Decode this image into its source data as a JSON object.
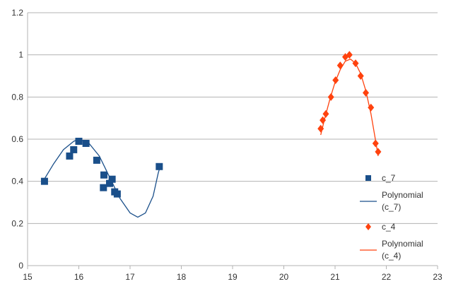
{
  "chart_data": {
    "type": "scatter",
    "title": "",
    "xlabel": "",
    "ylabel": "",
    "xlim": [
      15,
      23
    ],
    "ylim": [
      0,
      1.2
    ],
    "x_ticks": [
      "15",
      "16",
      "17",
      "18",
      "19",
      "20",
      "21",
      "22",
      "23"
    ],
    "y_ticks": [
      "0",
      "0.2",
      "0.4",
      "0.6",
      "0.8",
      "1",
      "1.2"
    ],
    "grid": "horizontal",
    "legend_position": "right",
    "series": [
      {
        "name": "c_7",
        "marker": "square",
        "color": "#1a4f8a",
        "points": [
          [
            15.33,
            0.4
          ],
          [
            15.82,
            0.52
          ],
          [
            15.9,
            0.55
          ],
          [
            16.0,
            0.59
          ],
          [
            16.14,
            0.58
          ],
          [
            16.35,
            0.5
          ],
          [
            16.49,
            0.43
          ],
          [
            16.48,
            0.37
          ],
          [
            16.6,
            0.39
          ],
          [
            16.65,
            0.41
          ],
          [
            16.7,
            0.35
          ],
          [
            16.75,
            0.34
          ],
          [
            17.57,
            0.47
          ]
        ]
      },
      {
        "name": "Polynomial\n(c_7)",
        "kind": "trendline",
        "color": "#1a4f8a",
        "curve": [
          [
            15.3,
            0.4
          ],
          [
            15.5,
            0.48
          ],
          [
            15.7,
            0.55
          ],
          [
            15.9,
            0.59
          ],
          [
            16.0,
            0.6
          ],
          [
            16.2,
            0.58
          ],
          [
            16.4,
            0.52
          ],
          [
            16.6,
            0.42
          ],
          [
            16.8,
            0.32
          ],
          [
            17.0,
            0.25
          ],
          [
            17.15,
            0.23
          ],
          [
            17.3,
            0.25
          ],
          [
            17.45,
            0.33
          ],
          [
            17.55,
            0.44
          ],
          [
            17.6,
            0.48
          ]
        ]
      },
      {
        "name": "c_4",
        "marker": "diamond",
        "color": "#ff420e",
        "points": [
          [
            20.72,
            0.65
          ],
          [
            20.76,
            0.69
          ],
          [
            20.82,
            0.72
          ],
          [
            20.92,
            0.8
          ],
          [
            21.01,
            0.88
          ],
          [
            21.1,
            0.95
          ],
          [
            21.2,
            0.99
          ],
          [
            21.28,
            1.0
          ],
          [
            21.4,
            0.96
          ],
          [
            21.5,
            0.9
          ],
          [
            21.6,
            0.82
          ],
          [
            21.7,
            0.75
          ],
          [
            21.79,
            0.58
          ],
          [
            21.84,
            0.54
          ]
        ]
      },
      {
        "name": "Polynomial\n(c_4)",
        "kind": "trendline",
        "color": "#ff420e",
        "curve": [
          [
            20.72,
            0.62
          ],
          [
            20.8,
            0.7
          ],
          [
            20.9,
            0.79
          ],
          [
            21.0,
            0.87
          ],
          [
            21.1,
            0.93
          ],
          [
            21.2,
            0.97
          ],
          [
            21.3,
            0.98
          ],
          [
            21.4,
            0.96
          ],
          [
            21.5,
            0.91
          ],
          [
            21.6,
            0.83
          ],
          [
            21.7,
            0.72
          ],
          [
            21.8,
            0.58
          ],
          [
            21.84,
            0.52
          ]
        ]
      }
    ]
  }
}
